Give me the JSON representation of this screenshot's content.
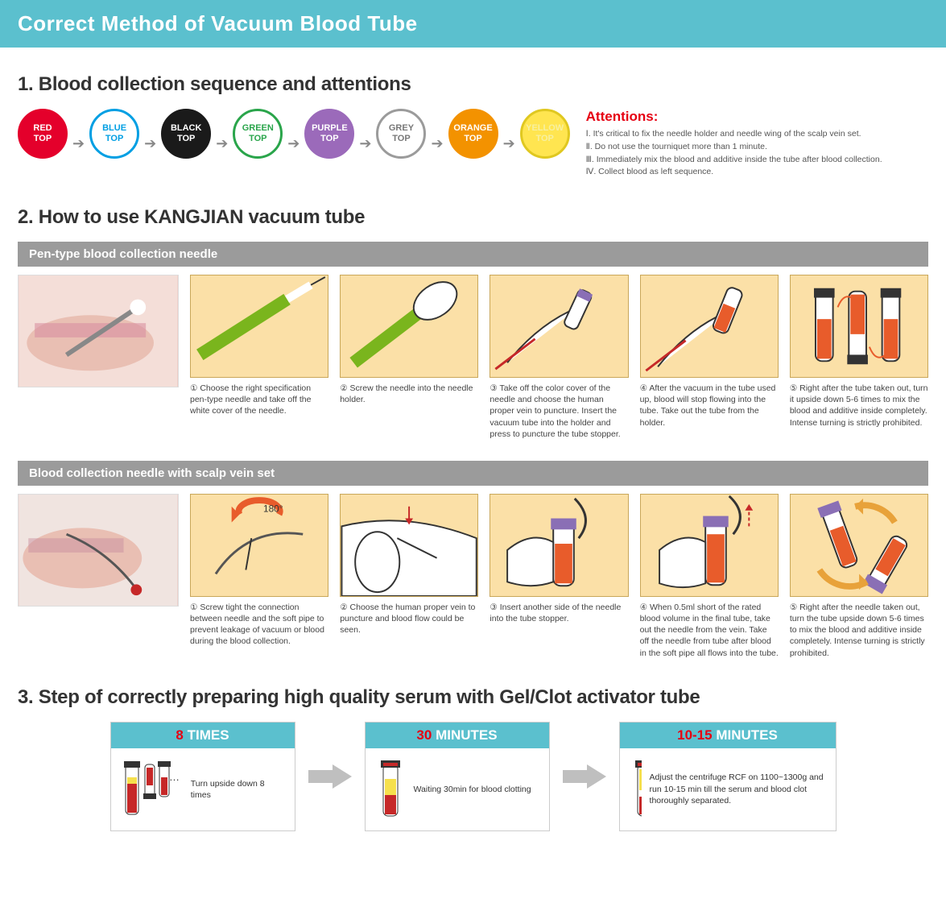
{
  "banner_title": "Correct Method of Vacuum Blood Tube",
  "section1": {
    "title": "1. Blood collection sequence and attentions",
    "tubes": [
      {
        "label1": "RED",
        "label2": "TOP",
        "fill": "#e4002b",
        "border": "#e4002b",
        "text": "#ffffff"
      },
      {
        "label1": "BLUE",
        "label2": "TOP",
        "fill": "#ffffff",
        "border": "#009fe3",
        "text": "#009fe3"
      },
      {
        "label1": "BLACK",
        "label2": "TOP",
        "fill": "#1a1a1a",
        "border": "#1a1a1a",
        "text": "#ffffff"
      },
      {
        "label1": "GREEN",
        "label2": "TOP",
        "fill": "#ffffff",
        "border": "#2aa54b",
        "text": "#2aa54b"
      },
      {
        "label1": "PURPLE",
        "label2": "TOP",
        "fill": "#9b6aba",
        "border": "#9b6aba",
        "text": "#ffffff"
      },
      {
        "label1": "GREY",
        "label2": "TOP",
        "fill": "#ffffff",
        "border": "#9b9b9b",
        "text": "#777777"
      },
      {
        "label1": "ORANGE",
        "label2": "TOP",
        "fill": "#f39200",
        "border": "#f39200",
        "text": "#ffffff"
      },
      {
        "label1": "YELLOW",
        "label2": "TOP",
        "fill": "#ffe550",
        "border": "#e0c820",
        "text": "#f7f0a0"
      }
    ],
    "attentions_title": "Attentions:",
    "attentions": [
      "Ⅰ. It's critical to fix the needle holder and needle wing of the scalp vein set.",
      "Ⅱ. Do not use the tourniquet more than 1 minute.",
      "Ⅲ. Immediately mix the blood and additive inside the tube after blood collection.",
      "Ⅳ. Collect blood as left sequence."
    ]
  },
  "section2": {
    "title": "2. How to use KANGJIAN vacuum tube",
    "pen": {
      "bar": "Pen-type blood collection needle",
      "steps": [
        "① Choose the right specification pen-type needle and take off the white cover of the needle.",
        "② Screw the needle into the needle holder.",
        "③ Take off the color cover of the needle and choose the human proper vein to puncture. Insert the vacuum tube into the holder and press to puncture the tube stopper.",
        "④ After the vacuum in the tube used up, blood will stop flowing into the tube. Take out the tube from the holder.",
        "⑤ Right after the tube taken out, turn it upside down 5-6 times to mix the blood and additive inside completely. Intense turning is strictly prohibited."
      ]
    },
    "scalp": {
      "bar": "Blood collection needle with scalp vein set",
      "steps": [
        "① Screw tight the connection between needle and the soft pipe to prevent leakage of vacuum or blood during the blood collection.",
        "② Choose the human proper vein to puncture and blood flow could be seen.",
        "③ Insert another side of the needle into the tube stopper.",
        "④ When 0.5ml short of the rated blood volume in the final tube, take out the needle from the vein. Take off the needle from tube after blood in the soft pipe all flows into the tube.",
        "⑤ Right after the needle taken out, turn the tube upside down 5-6 times to mix the blood and additive inside completely. Intense turning is strictly prohibited."
      ],
      "rotation_label": "180°"
    }
  },
  "section3": {
    "title": "3. Step of correctly preparing high quality serum with Gel/Clot activator tube",
    "boxes": [
      {
        "num": "8",
        "unit": "TIMES",
        "body": "Turn upside down 8 times"
      },
      {
        "num": "30",
        "unit": "MINUTES",
        "body": "Waiting 30min for blood clotting"
      },
      {
        "num": "10-15",
        "unit": "MINUTES",
        "body": "Adjust the centrifuge RCF on 1100~1300g and run 10-15 min till the serum and blood clot thoroughly separated."
      }
    ]
  },
  "colors": {
    "banner_bg": "#5bc0ce",
    "arrow_gray": "#bfbfbf",
    "step_bg": "#fbe0a7",
    "accent_red": "#e60012"
  }
}
